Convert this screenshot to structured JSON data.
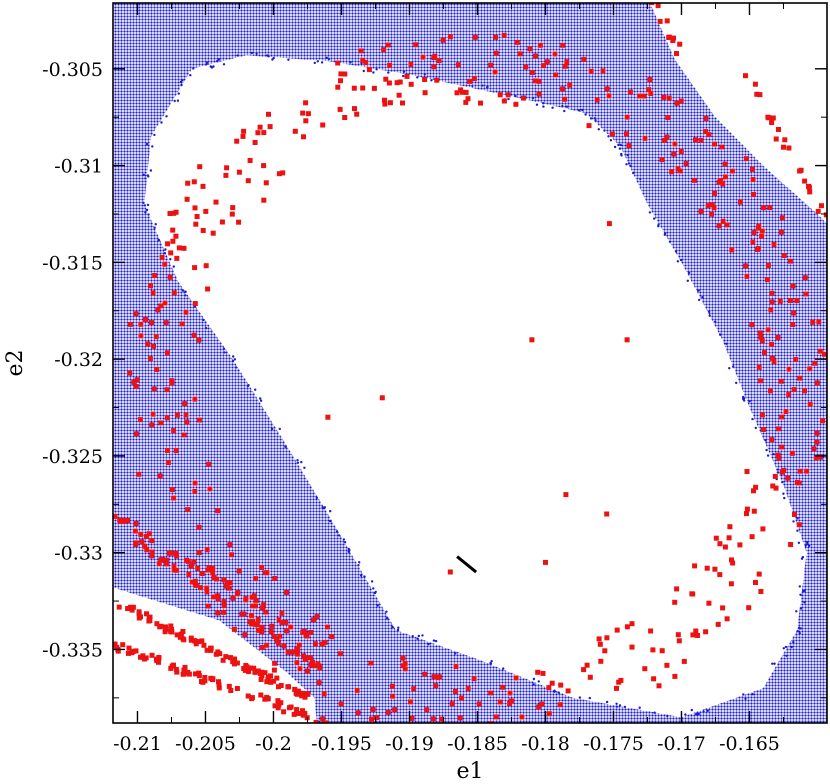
{
  "chart_data": {
    "type": "scatter",
    "title": "",
    "xlabel": "e1",
    "ylabel": "e2",
    "xlim": [
      -0.2118,
      -0.1593
    ],
    "ylim": [
      -0.3388,
      -0.3016
    ],
    "x_ticks": [
      -0.21,
      -0.205,
      -0.2,
      -0.195,
      -0.19,
      -0.185,
      -0.18,
      -0.175,
      -0.17,
      -0.165
    ],
    "x_tick_labels": [
      "-0.21",
      "-0.205",
      "-0.2",
      "-0.195",
      "-0.19",
      "-0.185",
      "-0.18",
      "-0.175",
      "-0.17",
      "-0.165"
    ],
    "y_ticks": [
      -0.305,
      -0.31,
      -0.315,
      -0.32,
      -0.325,
      -0.33,
      -0.335
    ],
    "y_tick_labels": [
      "-0.305",
      "-0.31",
      "-0.315",
      "-0.32",
      "-0.325",
      "-0.33",
      "-0.335"
    ],
    "grid": false,
    "legend": "none",
    "colors": {
      "blue_points": "#1a1ad6",
      "red_points": "#ee1111",
      "segment": "#000000",
      "axes": "#000000"
    },
    "series": [
      {
        "style": "dense blue dots filling regions",
        "regions": [
          {
            "kind": "polygon",
            "points": [
              [
                -0.2118,
                -0.3016
              ],
              [
                -0.1723,
                -0.3016
              ],
              [
                -0.1705,
                -0.3045
              ],
              [
                -0.1675,
                -0.3075
              ],
              [
                -0.164,
                -0.31
              ],
              [
                -0.16,
                -0.3125
              ],
              [
                -0.1593,
                -0.313
              ],
              [
                -0.1593,
                -0.3388
              ],
              [
                -0.2118,
                -0.3388
              ]
            ]
          }
        ],
        "holes": [
          {
            "kind": "polygon",
            "points": [
              [
                -0.209,
                -0.3085
              ],
              [
                -0.206,
                -0.305
              ],
              [
                -0.202,
                -0.3043
              ],
              [
                -0.196,
                -0.3046
              ],
              [
                -0.19,
                -0.3053
              ],
              [
                -0.182,
                -0.3065
              ],
              [
                -0.177,
                -0.3073
              ],
              [
                -0.1745,
                -0.309
              ],
              [
                -0.1725,
                -0.312
              ],
              [
                -0.17,
                -0.315
              ],
              [
                -0.167,
                -0.319
              ],
              [
                -0.165,
                -0.3225
              ],
              [
                -0.1625,
                -0.3265
              ],
              [
                -0.1608,
                -0.33
              ],
              [
                -0.1615,
                -0.334
              ],
              [
                -0.164,
                -0.337
              ],
              [
                -0.17,
                -0.3385
              ],
              [
                -0.178,
                -0.3375
              ],
              [
                -0.185,
                -0.3355
              ],
              [
                -0.191,
                -0.334
              ],
              [
                -0.1935,
                -0.331
              ],
              [
                -0.196,
                -0.328
              ],
              [
                -0.199,
                -0.3245
              ],
              [
                -0.203,
                -0.32
              ],
              [
                -0.207,
                -0.316
              ],
              [
                -0.2095,
                -0.312
              ]
            ]
          },
          {
            "kind": "polygon",
            "points": [
              [
                -0.1723,
                -0.3016
              ],
              [
                -0.1593,
                -0.3016
              ],
              [
                -0.1593,
                -0.313
              ],
              [
                -0.16,
                -0.3125
              ],
              [
                -0.164,
                -0.31
              ],
              [
                -0.1675,
                -0.3075
              ],
              [
                -0.1705,
                -0.3045
              ]
            ]
          },
          {
            "kind": "band",
            "points": [
              [
                -0.2118,
                -0.3318
              ],
              [
                -0.204,
                -0.3335
              ],
              [
                -0.199,
                -0.3362
              ],
              [
                -0.197,
                -0.3375
              ],
              [
                -0.1968,
                -0.3388
              ],
              [
                -0.2118,
                -0.3388
              ]
            ]
          }
        ]
      },
      {
        "style": "small red squares",
        "clusters": [
          {
            "shape": "ring",
            "center": [
              -0.185,
              -0.3213
            ],
            "rx": 0.024,
            "ry": 0.017,
            "rotation_deg": -40,
            "count": 520
          },
          {
            "shape": "line",
            "from": [
              -0.2118,
              -0.3348
            ],
            "to": [
              -0.196,
              -0.3388
            ],
            "count": 80
          },
          {
            "shape": "line",
            "from": [
              -0.2118,
              -0.3325
            ],
            "to": [
              -0.1975,
              -0.3375
            ],
            "count": 90
          },
          {
            "shape": "line",
            "from": [
              -0.21,
              -0.3295
            ],
            "to": [
              -0.1965,
              -0.336
            ],
            "count": 60
          },
          {
            "shape": "line",
            "from": [
              -0.2118,
              -0.328
            ],
            "to": [
              -0.197,
              -0.3345
            ],
            "count": 50
          },
          {
            "shape": "line",
            "from": [
              -0.172,
              -0.3016
            ],
            "to": [
              -0.17,
              -0.3045
            ],
            "count": 10
          },
          {
            "shape": "line",
            "from": [
              -0.1655,
              -0.305
            ],
            "to": [
              -0.1595,
              -0.3125
            ],
            "count": 22
          }
        ],
        "isolated": [
          [
            -0.18,
            -0.3305
          ],
          [
            -0.1753,
            -0.313
          ],
          [
            -0.187,
            -0.331
          ],
          [
            -0.196,
            -0.323
          ],
          [
            -0.192,
            -0.322
          ],
          [
            -0.181,
            -0.319
          ],
          [
            -0.1785,
            -0.327
          ],
          [
            -0.174,
            -0.319
          ],
          [
            -0.1755,
            -0.328
          ]
        ]
      },
      {
        "style": "black line segment",
        "from": [
          -0.1865,
          -0.3302
        ],
        "to": [
          -0.1851,
          -0.331
        ]
      }
    ]
  }
}
